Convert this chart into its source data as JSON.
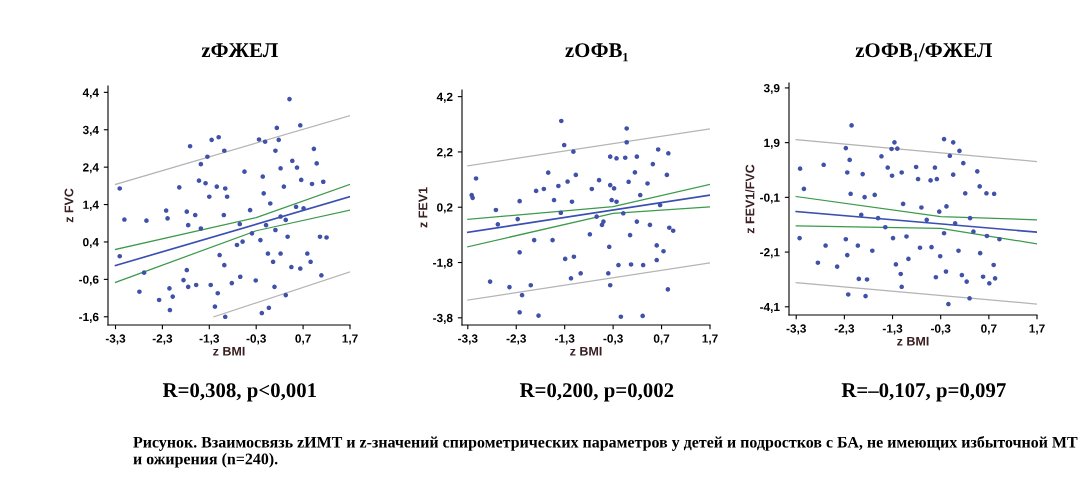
{
  "chart_data": [
    {
      "type": "scatter",
      "title": "zФЖЕЛ",
      "xlabel": "z BMI",
      "ylabel": "z FVC",
      "xlim": [
        -3.46,
        1.7
      ],
      "ylim": [
        -1.82,
        4.57
      ],
      "xticks": [
        {
          "value": -3.3,
          "label": "-3,3"
        },
        {
          "value": -2.3,
          "label": "-2,3"
        },
        {
          "value": -1.3,
          "label": "-1,3"
        },
        {
          "value": -0.3,
          "label": "-0,3"
        },
        {
          "value": 0.7,
          "label": "0,7"
        },
        {
          "value": 1.7,
          "label": "1,7"
        }
      ],
      "yticks": [
        {
          "value": -1.6,
          "label": "-1,6"
        },
        {
          "value": -0.6,
          "label": "-0,6"
        },
        {
          "value": 0.4,
          "label": "0,4"
        },
        {
          "value": 1.4,
          "label": "1,4"
        },
        {
          "value": 2.4,
          "label": "2,4"
        },
        {
          "value": 3.4,
          "label": "3,4"
        },
        {
          "value": 4.4,
          "label": "4,4"
        }
      ],
      "grid": false,
      "legend": false,
      "series": [
        {
          "marker": "circle",
          "color": "#3f51a8",
          "x": [
            -3.21,
            -3.11,
            -3.21,
            -2.64,
            -2.79,
            -2.69,
            -2.37,
            -2.22,
            -2.19,
            -2.15,
            -2.14,
            -2.08,
            -1.94,
            -1.78,
            -1.75,
            -1.78,
            -1.85,
            -1.75,
            -1.71,
            -1.6,
            -1.58,
            -1.52,
            -1.48,
            -1.48,
            -1.38,
            -1.34,
            -1.3,
            -1.25,
            -1.27,
            -1.18,
            -1.14,
            -1.1,
            -1.08,
            -1.12,
            -0.98,
            -0.96,
            -0.99,
            -0.92,
            -0.96,
            -0.98,
            -0.82,
            -0.71,
            -0.65,
            -0.59,
            -0.55,
            -0.64,
            -0.43,
            -0.39,
            -0.31,
            -0.24,
            -0.18,
            -0.16,
            -0.11,
            -0.14,
            -0.09,
            -0.03,
            -0.05,
            0.0,
            0.11,
            0.14,
            0.18,
            0.06,
            0.09,
            0.22,
            0.29,
            0.33,
            0.33,
            0.37,
            0.41,
            0.47,
            0.57,
            0.55,
            0.45,
            0.64,
            0.66,
            0.71,
            0.79,
            0.86,
            0.93,
            0.99,
            1.06,
            1.09,
            1.13,
            1.2,
            0.89,
            0.64,
            0.22,
            0.11,
            -0.21,
            0.22
          ],
          "values": [
            1.83,
            1.0,
            0.02,
            0.97,
            -0.93,
            -0.42,
            -1.15,
            1.24,
            1.03,
            -0.84,
            -1.42,
            -1.06,
            1.86,
            1.21,
            0.85,
            -0.35,
            -0.62,
            -0.8,
            2.96,
            1.12,
            -0.75,
            2.04,
            2.48,
            0.76,
            1.97,
            2.68,
            1.61,
            3.13,
            -0.75,
            -1.33,
            1.88,
            3.2,
            0.05,
            -0.97,
            2.84,
            1.83,
            1.12,
            1.61,
            -1.6,
            -0.22,
            -0.7,
            0.32,
            0.88,
            0.41,
            2.28,
            -0.53,
            1.25,
            0.63,
            -0.63,
            3.14,
            -1.5,
            2.15,
            3.08,
            1.7,
            0.85,
            -1.36,
            0.09,
            1.43,
            2.84,
            3.45,
            3.13,
            -0.13,
            -0.8,
            2.37,
            1.88,
            0.99,
            -1.02,
            0.54,
            4.22,
            2.57,
            2.39,
            1.34,
            -0.27,
            3.52,
            2.06,
            1.3,
            0.09,
            -0.13,
            2.89,
            2.5,
            0.54,
            -0.49,
            2.01,
            0.52,
            1.95,
            -0.31,
            0.09,
            0.72,
            0.45,
            1.08
          ]
        },
        {
          "type": "line",
          "color": "#3a4fb0",
          "x": [
            -3.3,
            1.7
          ],
          "values": [
            -0.23,
            1.61
          ]
        },
        {
          "type": "line",
          "color": "#3c9a4a",
          "x": [
            -3.3,
            -0.3,
            1.7
          ],
          "values": [
            0.2,
            1.05,
            1.94
          ]
        },
        {
          "type": "line",
          "color": "#3c9a4a",
          "x": [
            -3.3,
            -0.3,
            1.7
          ],
          "values": [
            -0.68,
            0.7,
            1.25
          ]
        },
        {
          "type": "line",
          "color": "#b4b4b4",
          "x": [
            -3.3,
            1.7
          ],
          "values": [
            1.94,
            3.78
          ]
        },
        {
          "type": "line",
          "color": "#b4b4b4",
          "x": [
            -1.2,
            1.7
          ],
          "values": [
            -1.6,
            -0.4
          ]
        }
      ],
      "annotations": [
        "R=0,308, p<0,001",
        "Рисунок. Взаимосвязь zИМТ и z-значений спирометрических параметров у детей и подростков с БА, не имеющих избыточной МТ и ожирения (n=240)."
      ]
    },
    {
      "type": "scatter",
      "title": "zОФВ₁",
      "xlabel": "z BMI",
      "ylabel": "z FEV1",
      "xlim": [
        -3.42,
        1.7
      ],
      "ylim": [
        -4.06,
        4.44
      ],
      "xticks": [
        {
          "value": -3.3,
          "label": "-3,3"
        },
        {
          "value": -2.3,
          "label": "-2,3"
        },
        {
          "value": -1.3,
          "label": "-1,3"
        },
        {
          "value": -0.3,
          "label": "-0,3"
        },
        {
          "value": 0.7,
          "label": "0,7"
        },
        {
          "value": 1.7,
          "label": "1,7"
        }
      ],
      "yticks": [
        {
          "value": -3.8,
          "label": "-3,8"
        },
        {
          "value": -1.8,
          "label": "-1,8"
        },
        {
          "value": 0.2,
          "label": "0,2"
        },
        {
          "value": 2.2,
          "label": "2,2"
        },
        {
          "value": 4.2,
          "label": "4,2"
        }
      ],
      "grid": false,
      "legend": false,
      "series": [
        {
          "marker": "circle",
          "color": "#3f51a8",
          "x": [
            -3.13,
            -3.22,
            -3.2,
            -2.72,
            -2.68,
            -2.84,
            -2.44,
            -2.23,
            -2.27,
            -2.23,
            -2.18,
            -2.23,
            -2.0,
            -1.84,
            -1.93,
            -1.89,
            -1.73,
            -1.64,
            -1.52,
            -1.55,
            -1.43,
            -1.37,
            -1.31,
            -1.38,
            -1.29,
            -1.24,
            -1.17,
            -1.12,
            -1.11,
            -1.07,
            -1.15,
            -0.97,
            -0.78,
            -0.74,
            -0.59,
            -0.64,
            -0.53,
            -0.5,
            -0.4,
            -0.38,
            -0.36,
            -0.36,
            -0.28,
            -0.33,
            -0.23,
            -0.19,
            -0.14,
            -0.09,
            -0.02,
            -0.02,
            -0.05,
            0.02,
            0.07,
            0.15,
            0.19,
            0.26,
            0.31,
            0.32,
            0.41,
            0.46,
            0.52,
            0.6,
            0.63,
            0.6,
            0.74,
            0.84,
            0.83,
            0.86,
            0.94,
            0.81,
            0.67,
            0.19,
            -0.23,
            -0.36,
            0.05
          ],
          "values": [
            1.24,
            0.64,
            0.54,
            0.1,
            -0.42,
            -2.49,
            -2.69,
            0.42,
            -0.23,
            -1.43,
            -2.98,
            -3.6,
            -2.62,
            -3.72,
            -0.99,
            0.79,
            0.86,
            1.45,
            0.46,
            -0.99,
            0.97,
            3.32,
            2.45,
            0.0,
            -1.67,
            1.13,
            -2.37,
            2.21,
            -1.59,
            1.37,
            0.4,
            -2.19,
            -0.78,
            0.86,
            1.18,
            -0.14,
            -0.44,
            -0.32,
            -2.19,
            -1.23,
            -2.62,
            2.03,
            0.88,
            0.46,
            1.97,
            -1.89,
            -3.76,
            -0.02,
            3.05,
            2.55,
            1.99,
            1.12,
            -1.87,
            1.46,
            2.03,
            0.64,
            -3.73,
            -1.89,
            1.06,
            -0.44,
            1.76,
            -1.18,
            2.29,
            -1.71,
            -1.39,
            2.15,
            -2.77,
            -0.54,
            -0.65,
            1.37,
            0.28,
            -0.32,
            0.4,
            1.0,
            -0.81
          ]
        },
        {
          "type": "line",
          "color": "#3a4fb0",
          "x": [
            -3.3,
            1.7
          ],
          "values": [
            -0.71,
            0.64
          ]
        },
        {
          "type": "line",
          "color": "#3c9a4a",
          "x": [
            -3.3,
            -0.3,
            1.7
          ],
          "values": [
            -0.24,
            0.22,
            1.03
          ]
        },
        {
          "type": "line",
          "color": "#3c9a4a",
          "x": [
            -3.3,
            -0.3,
            1.7
          ],
          "values": [
            -1.23,
            -0.02,
            0.21
          ]
        },
        {
          "type": "line",
          "color": "#b4b4b4",
          "x": [
            -3.3,
            1.7
          ],
          "values": [
            1.7,
            3.03
          ]
        },
        {
          "type": "line",
          "color": "#b4b4b4",
          "x": [
            -3.3,
            1.7
          ],
          "values": [
            -3.16,
            -1.81
          ]
        }
      ],
      "annotations": [
        "R=0,200, p=0,002"
      ]
    },
    {
      "type": "scatter",
      "title": "zОФВ₁/ФЖЕЛ",
      "xlabel": "z BMI",
      "ylabel": "z FEV1/FVC",
      "xlim": [
        -3.45,
        1.7
      ],
      "ylim": [
        -4.4,
        4.08
      ],
      "xticks": [
        {
          "value": -3.3,
          "label": "-3,3"
        },
        {
          "value": -2.3,
          "label": "-2,3"
        },
        {
          "value": -1.3,
          "label": "-1,3"
        },
        {
          "value": -0.3,
          "label": "-0,3"
        },
        {
          "value": 0.7,
          "label": "0,7"
        },
        {
          "value": 1.7,
          "label": "1,7"
        }
      ],
      "yticks": [
        {
          "value": -4.1,
          "label": "-4,1"
        },
        {
          "value": -2.1,
          "label": "-2,1"
        },
        {
          "value": -0.1,
          "label": "-0,1"
        },
        {
          "value": 1.9,
          "label": "1,9"
        },
        {
          "value": 3.9,
          "label": "3,9"
        }
      ],
      "grid": false,
      "legend": false,
      "series": [
        {
          "marker": "circle",
          "color": "#3f51a8",
          "x": [
            -3.22,
            -3.14,
            -3.23,
            -2.73,
            -2.69,
            -2.85,
            -2.45,
            -2.27,
            -2.19,
            -2.24,
            -2.15,
            -2.17,
            -2.27,
            -2.24,
            -2.22,
            -2.02,
            -2.0,
            -1.92,
            -1.88,
            -1.95,
            -1.86,
            -1.83,
            -1.72,
            -1.67,
            -1.53,
            -1.6,
            -1.45,
            -1.4,
            -1.32,
            -1.26,
            -1.2,
            -1.31,
            -1.29,
            -1.23,
            -1.13,
            -1.11,
            -1.11,
            -1.08,
            -0.97,
            -0.81,
            -0.77,
            -0.73,
            -0.7,
            -0.51,
            -0.49,
            -0.42,
            -0.38,
            -0.4,
            -0.33,
            -0.31,
            -0.23,
            -0.23,
            -0.19,
            -0.14,
            -0.11,
            -0.04,
            -0.04,
            0.0,
            0.07,
            0.09,
            0.14,
            0.17,
            0.21,
            0.24,
            0.3,
            0.31,
            0.38,
            0.46,
            0.51,
            0.58,
            0.65,
            0.66,
            0.71,
            0.8,
            0.83,
            0.92,
            0.81,
            0.52,
            -0.18,
            -0.59,
            -1.01
          ],
          "values": [
            0.95,
            0.21,
            -1.59,
            1.09,
            -1.86,
            -2.49,
            -2.63,
            1.7,
            1.27,
            0.81,
            2.53,
            0.03,
            -1.63,
            -2.21,
            -3.65,
            -1.86,
            -3.08,
            0.75,
            -0.09,
            -0.74,
            -3.71,
            -3.1,
            -2.05,
            -0.01,
            1.4,
            -0.86,
            -1.19,
            0.99,
            1.67,
            1.91,
            1.68,
            0.69,
            -1.59,
            -2.55,
            -2.9,
            -3.37,
            0.81,
            -0.34,
            -2.35,
            1.01,
            0.57,
            -1.94,
            -0.47,
            0.52,
            -1.92,
            0.99,
            0.57,
            -3.02,
            -0.62,
            -2.25,
            2.03,
            -1.41,
            -2.81,
            -4.0,
            1.42,
            1.91,
            0.73,
            -1.05,
            -2.05,
            1.6,
            -2.94,
            1.15,
            0.05,
            -3.18,
            -3.79,
            -0.86,
            -1.35,
            0.85,
            0.3,
            -3.0,
            0.05,
            -1.51,
            -3.24,
            -2.57,
            -3.06,
            -1.63,
            0.03,
            -2.14,
            -0.43,
            -0.92,
            -1.53
          ]
        },
        {
          "type": "line",
          "color": "#3a4fb0",
          "x": [
            -3.3,
            1.7
          ],
          "values": [
            -0.62,
            -1.37
          ]
        },
        {
          "type": "line",
          "color": "#3c9a4a",
          "x": [
            -3.3,
            -0.3,
            1.7
          ],
          "values": [
            -0.07,
            -0.8,
            -0.92
          ]
        },
        {
          "type": "line",
          "color": "#3c9a4a",
          "x": [
            -3.3,
            -0.3,
            1.7
          ],
          "values": [
            -1.14,
            -1.23,
            -1.8
          ]
        },
        {
          "type": "line",
          "color": "#b4b4b4",
          "x": [
            -3.3,
            1.7
          ],
          "values": [
            2.01,
            1.21
          ]
        },
        {
          "type": "line",
          "color": "#b4b4b4",
          "x": [
            -3.3,
            1.7
          ],
          "values": [
            -3.22,
            -4.0
          ]
        }
      ],
      "annotations": [
        "R=–0,107, p=0,097"
      ]
    }
  ]
}
